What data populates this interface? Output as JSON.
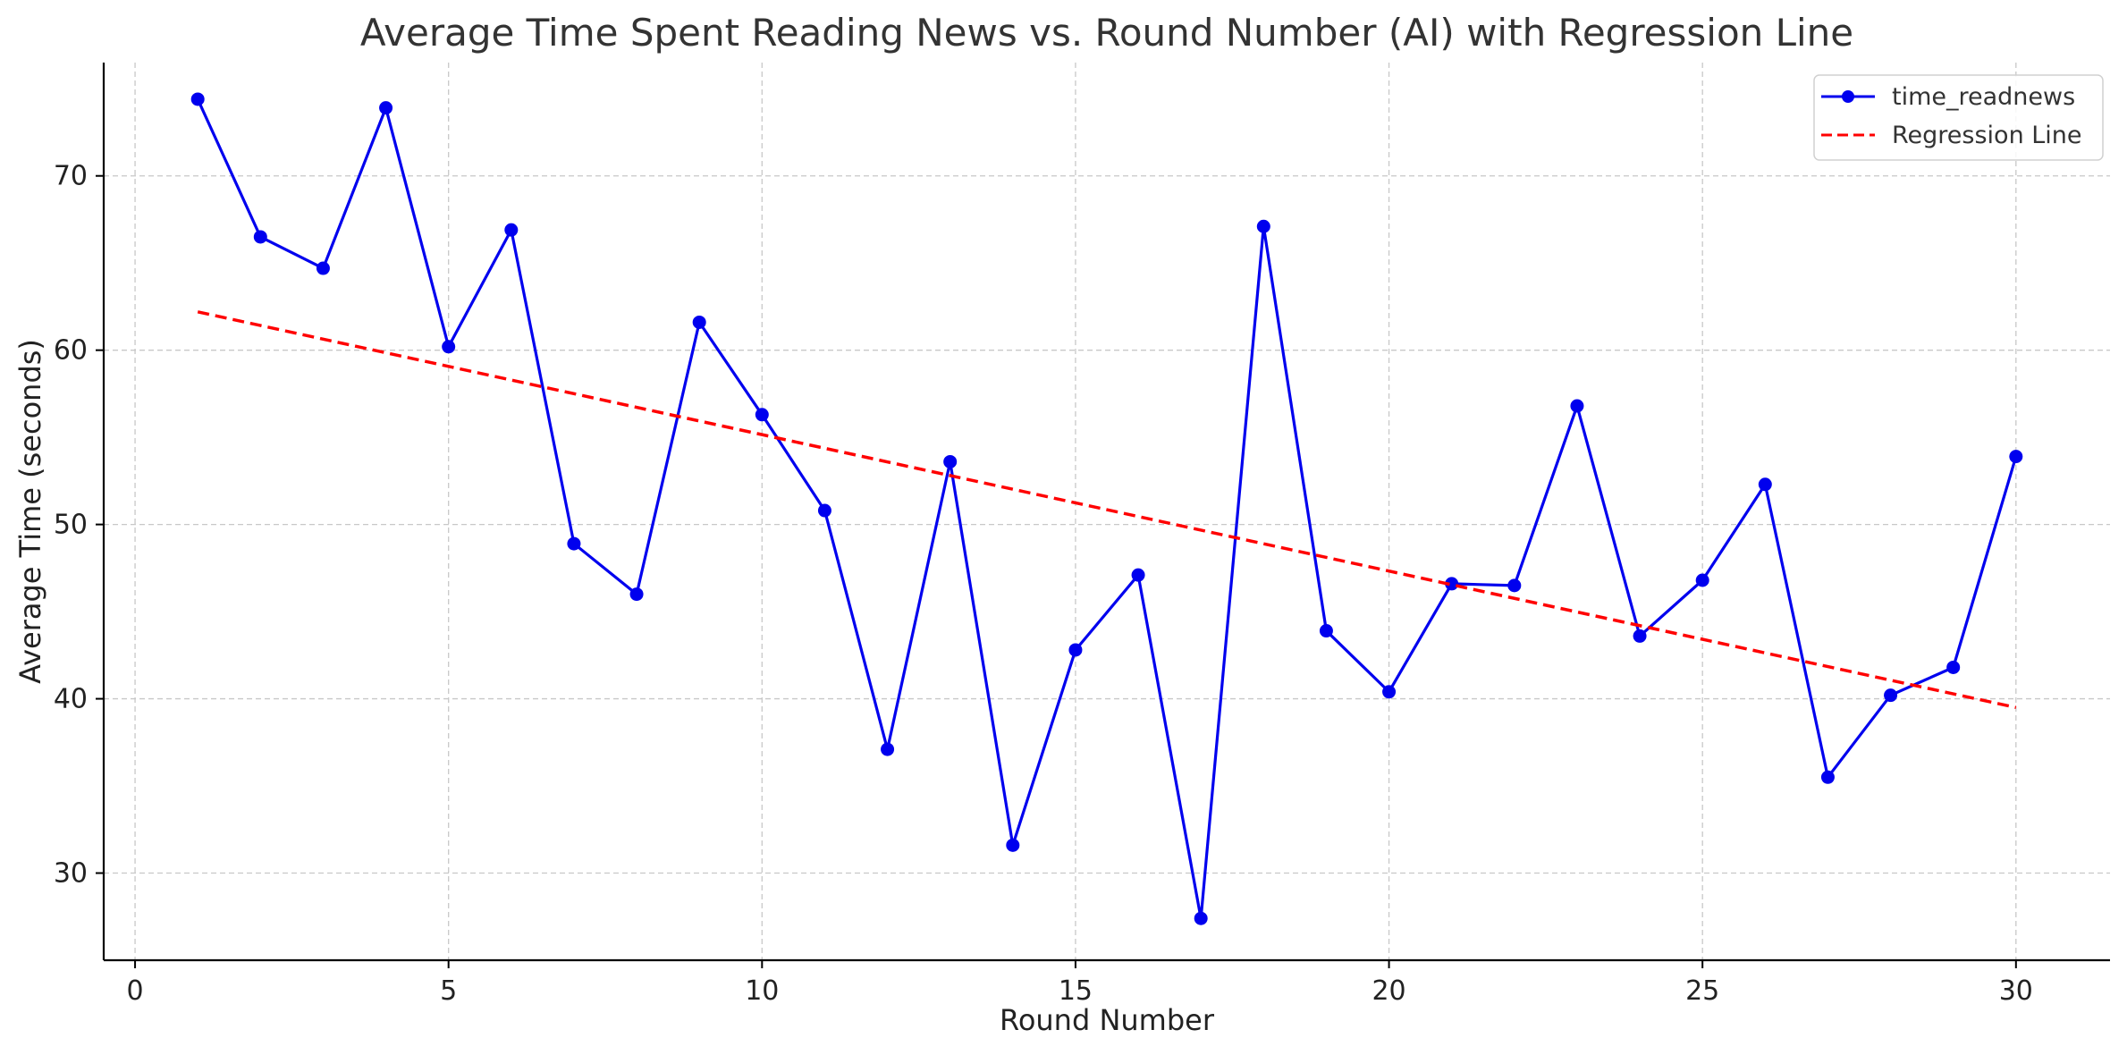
{
  "chart_data": {
    "type": "line",
    "title": "Average Time Spent Reading News vs. Round Number (AI) with Regression Line",
    "xlabel": "Round Number",
    "ylabel": "Average Time (seconds)",
    "xlim": [
      -0.5,
      31.5
    ],
    "ylim": [
      25,
      76.5
    ],
    "xticks": [
      0,
      5,
      10,
      15,
      20,
      25,
      30
    ],
    "yticks": [
      30,
      40,
      50,
      60,
      70
    ],
    "grid": true,
    "legend_position": "top-right",
    "series": [
      {
        "name": "time_readnews",
        "color": "#0000ee",
        "style": "solid-with-markers",
        "x": [
          1,
          2,
          3,
          4,
          5,
          6,
          7,
          8,
          9,
          10,
          11,
          12,
          13,
          14,
          15,
          16,
          17,
          18,
          19,
          20,
          21,
          22,
          23,
          24,
          25,
          26,
          27,
          28,
          29,
          30
        ],
        "y": [
          74.4,
          66.5,
          64.7,
          73.9,
          60.2,
          66.9,
          48.9,
          46.0,
          61.6,
          56.3,
          50.8,
          37.1,
          53.6,
          31.6,
          42.8,
          47.1,
          27.4,
          67.1,
          43.9,
          40.4,
          46.6,
          46.5,
          56.8,
          43.6,
          46.8,
          52.3,
          35.5,
          40.2,
          41.8,
          53.9
        ]
      },
      {
        "name": "Regression Line",
        "color": "#ff0000",
        "style": "dashed",
        "x": [
          1,
          30
        ],
        "y": [
          62.2,
          39.5
        ]
      }
    ]
  }
}
